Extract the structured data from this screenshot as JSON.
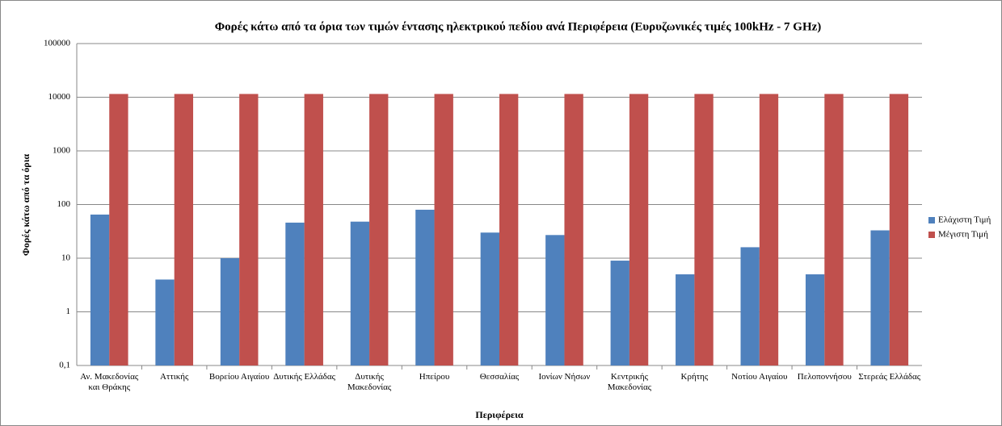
{
  "chart_data": {
    "type": "bar",
    "title": "Φορές κάτω από τα όρια των τιμών έντασης ηλεκτρικού πεδίου ανά Περιφέρεια (Ευρυζωνικές τιμές 100kHz - 7 GHz)",
    "x_label": "Περιφέρεια",
    "y_label": "Φορές κάτω από τα όρια",
    "categories": [
      "Αν. Μακεδονίας και Θράκης",
      "Αττικής",
      "Βορείου Αιγαίου",
      "Δυτικής Ελλάδας",
      "Δυτικής Μακεδονίας",
      "Ηπείρου",
      "Θεσσαλίας",
      "Ιονίων Νήσων",
      "Κεντρικής Μακεδονίας",
      "Κρήτης",
      "Νοτίου Αιγαίου",
      "Πελοποννήσου",
      "Στερεάς Ελλάδας"
    ],
    "series": [
      {
        "name": "Ελάχιστη Τιμή",
        "color": "#4f81bd",
        "values": [
          65,
          4,
          10,
          46,
          48,
          80,
          30,
          27,
          9,
          5,
          16,
          5,
          33
        ]
      },
      {
        "name": "Μέγιστη Τιμή",
        "color": "#c0504d",
        "values": [
          11500,
          11500,
          11500,
          11500,
          11500,
          11500,
          11500,
          11500,
          11500,
          11500,
          11500,
          11500,
          11500
        ]
      }
    ],
    "ylim": [
      0.1,
      100000
    ],
    "yticks": [
      {
        "value": 0.1,
        "label": "0,1"
      },
      1,
      10,
      100,
      1000,
      10000,
      100000
    ],
    "log_scale": true,
    "grid": true,
    "legend": "right"
  }
}
